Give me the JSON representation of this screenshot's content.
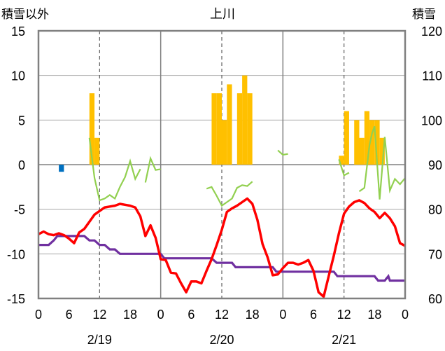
{
  "chart_data": {
    "type": "line",
    "title": "上川",
    "y_left_label": "積雪以外",
    "y_right_label": "積雪",
    "y_left_range": [
      -15,
      15
    ],
    "y_left_ticks": [
      "15",
      "10",
      "5",
      "0",
      "-5",
      "-10",
      "-15"
    ],
    "y_right_range": [
      60,
      120
    ],
    "y_right_ticks": [
      "120",
      "110",
      "100",
      "90",
      "80",
      "70",
      "60"
    ],
    "x_range_hours": [
      0,
      72
    ],
    "x_tick_labels": [
      "0",
      "6",
      "12",
      "18",
      "0",
      "6",
      "12",
      "18",
      "0",
      "6",
      "12",
      "18",
      "0"
    ],
    "date_labels": [
      "2/19",
      "2/20",
      "2/21"
    ],
    "grid": "dashed at 12h, solid day boundaries, solid zero line",
    "colors": {
      "temperature": "#ff0000",
      "snow_depth": "#7030a0",
      "snowfall_pos": "#ffc000",
      "snowfall_neg": "#0070c0",
      "green_series": "#92d050",
      "axis": "#808080"
    },
    "snowfall_bars": [
      {
        "h": 4,
        "v": -0.8
      },
      {
        "h": 10,
        "v": 8
      },
      {
        "h": 11,
        "v": 3
      },
      {
        "h": 34,
        "v": 8
      },
      {
        "h": 35,
        "v": 8
      },
      {
        "h": 36,
        "v": 5
      },
      {
        "h": 37,
        "v": 9
      },
      {
        "h": 39,
        "v": 8
      },
      {
        "h": 40,
        "v": 10
      },
      {
        "h": 41,
        "v": 8
      },
      {
        "h": 59,
        "v": 1
      },
      {
        "h": 60,
        "v": 6
      },
      {
        "h": 62,
        "v": 5
      },
      {
        "h": 63,
        "v": 3
      },
      {
        "h": 64,
        "v": 6
      },
      {
        "h": 65,
        "v": 5
      },
      {
        "h": 66,
        "v": 5
      },
      {
        "h": 67,
        "v": 3
      }
    ],
    "temperature": [
      [
        0,
        -7.8
      ],
      [
        1,
        -7.5
      ],
      [
        2,
        -7.8
      ],
      [
        3,
        -7.9
      ],
      [
        4,
        -7.7
      ],
      [
        5,
        -7.9
      ],
      [
        6,
        -8.3
      ],
      [
        7,
        -8.8
      ],
      [
        8,
        -7.6
      ],
      [
        9,
        -7.2
      ],
      [
        10,
        -6.4
      ],
      [
        11,
        -5.6
      ],
      [
        12,
        -5.2
      ],
      [
        13,
        -4.8
      ],
      [
        14,
        -4.7
      ],
      [
        15,
        -4.6
      ],
      [
        16,
        -4.4
      ],
      [
        17,
        -4.5
      ],
      [
        18,
        -4.6
      ],
      [
        19,
        -4.8
      ],
      [
        20,
        -5.8
      ],
      [
        21,
        -8
      ],
      [
        22,
        -6.8
      ],
      [
        23,
        -8.2
      ],
      [
        24,
        -10.6
      ],
      [
        25,
        -10.7
      ],
      [
        26,
        -12.1
      ],
      [
        27,
        -12.2
      ],
      [
        28,
        -13.3
      ],
      [
        29,
        -14.3
      ],
      [
        30,
        -13.1
      ],
      [
        31,
        -13.1
      ],
      [
        32,
        -13.3
      ],
      [
        33,
        -11.9
      ],
      [
        34,
        -10.6
      ],
      [
        35,
        -9
      ],
      [
        36,
        -7.3
      ],
      [
        37,
        -5.3
      ],
      [
        38,
        -4.9
      ],
      [
        39,
        -4.6
      ],
      [
        40,
        -4.2
      ],
      [
        41,
        -3.8
      ],
      [
        42,
        -4.4
      ],
      [
        43,
        -6.2
      ],
      [
        44,
        -8.9
      ],
      [
        45,
        -10.4
      ],
      [
        46,
        -12.4
      ],
      [
        47,
        -12.3
      ],
      [
        48,
        -11.6
      ],
      [
        49,
        -11
      ],
      [
        50,
        -11
      ],
      [
        51,
        -11.2
      ],
      [
        52,
        -11
      ],
      [
        53,
        -10.7
      ],
      [
        54,
        -11.9
      ],
      [
        55,
        -14.3
      ],
      [
        56,
        -14.8
      ],
      [
        57,
        -12.5
      ],
      [
        58,
        -10.2
      ],
      [
        59,
        -7.7
      ],
      [
        60,
        -5.5
      ],
      [
        61,
        -4.7
      ],
      [
        62,
        -4.2
      ],
      [
        63,
        -4
      ],
      [
        64,
        -4.3
      ],
      [
        65,
        -4.9
      ],
      [
        66,
        -5.3
      ],
      [
        67,
        -6
      ],
      [
        68,
        -5.4
      ],
      [
        69,
        -6
      ],
      [
        70,
        -6.9
      ],
      [
        71,
        -8.8
      ],
      [
        72,
        -9.1
      ]
    ],
    "snow_depth": [
      [
        0,
        72
      ],
      [
        2,
        72
      ],
      [
        3,
        73
      ],
      [
        3.7,
        74
      ],
      [
        9,
        74
      ],
      [
        10,
        73
      ],
      [
        11,
        73
      ],
      [
        12,
        72
      ],
      [
        13,
        72
      ],
      [
        14,
        71
      ],
      [
        15,
        71
      ],
      [
        16,
        70
      ],
      [
        24,
        70
      ],
      [
        24.7,
        69
      ],
      [
        34,
        69
      ],
      [
        35,
        68
      ],
      [
        38,
        68
      ],
      [
        38.7,
        67
      ],
      [
        46,
        67
      ],
      [
        46.7,
        66
      ],
      [
        58,
        66
      ],
      [
        58.7,
        65
      ],
      [
        66,
        65
      ],
      [
        66.7,
        64
      ],
      [
        68,
        64
      ],
      [
        68.7,
        65
      ],
      [
        69,
        64
      ],
      [
        72,
        64
      ]
    ],
    "green_series": [
      [
        [
          10,
          3
        ],
        [
          11,
          -1.5
        ],
        [
          12,
          -4
        ],
        [
          13,
          -3.8
        ],
        [
          14,
          -3.4
        ],
        [
          15,
          -3.8
        ],
        [
          16,
          -2.5
        ],
        [
          17,
          -1.4
        ],
        [
          18,
          0.4
        ],
        [
          19,
          -1.6
        ],
        [
          20,
          -0.5
        ]
      ],
      [
        [
          21,
          -2
        ],
        [
          22,
          0.7
        ],
        [
          23,
          -0.6
        ],
        [
          24,
          -0.5
        ]
      ],
      [
        [
          33,
          -2.7
        ],
        [
          34,
          -2.5
        ],
        [
          35,
          -3.5
        ],
        [
          36,
          -4.6
        ],
        [
          37,
          -4.2
        ],
        [
          38,
          -3.8
        ],
        [
          39,
          -2.6
        ],
        [
          40,
          -2.3
        ],
        [
          41,
          -2.4
        ],
        [
          42,
          -1.9
        ]
      ],
      [
        [
          47,
          1.6
        ],
        [
          48,
          1.1
        ],
        [
          49,
          1.2
        ]
      ],
      [
        [
          59,
          0.6
        ],
        [
          60,
          -1.2
        ],
        [
          61,
          -0.9
        ]
      ],
      [
        [
          63,
          -3
        ],
        [
          64,
          -2.6
        ],
        [
          65,
          2.2
        ],
        [
          65.5,
          3.5
        ],
        [
          66,
          4.3
        ],
        [
          67,
          -3.9
        ],
        [
          68,
          3.1
        ],
        [
          69,
          -2.9
        ],
        [
          70,
          -1.6
        ],
        [
          71,
          -2.2
        ],
        [
          72,
          -1.5
        ]
      ]
    ]
  }
}
